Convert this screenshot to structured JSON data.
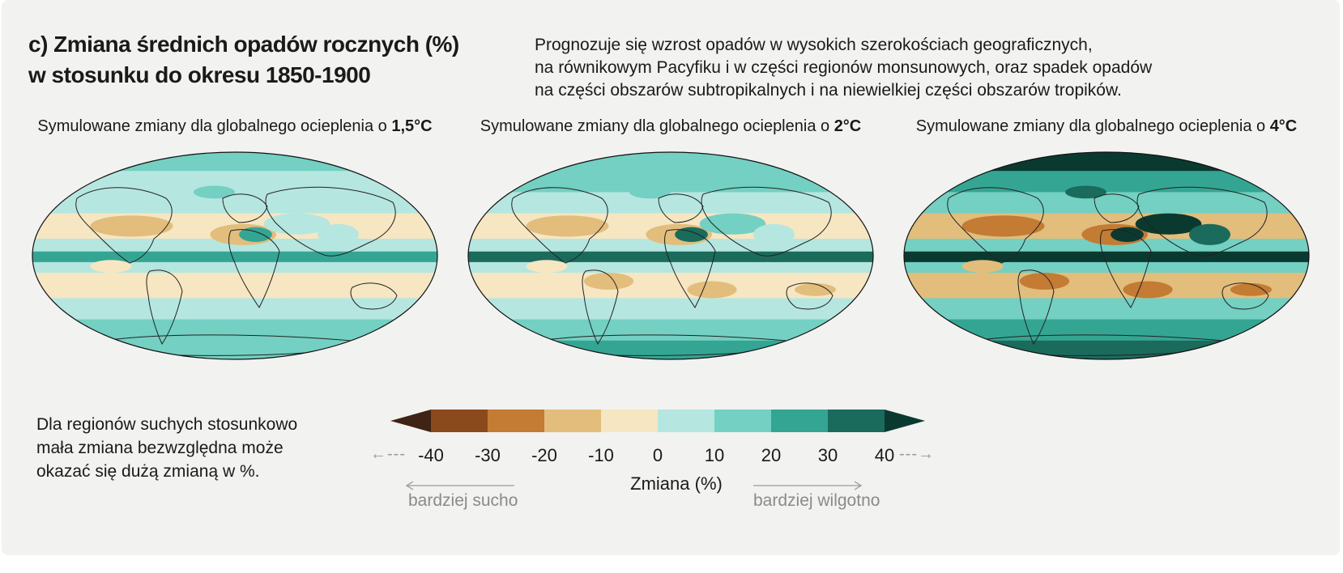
{
  "title": {
    "line1": "c) Zmiana średnich opadów rocznych (%)",
    "line2": "w stosunku do okresu 1850-1900"
  },
  "description": {
    "lines": [
      "Prognozuje się wzrost opadów w wysokich szerokościach geograficznych,",
      "na równikowym Pacyfiku i w części regionów monsunowych, oraz spadek opadów",
      "na części obszarów subtropikalnych i na niewielkiej części obszarów tropików."
    ]
  },
  "maps": [
    {
      "caption_prefix": "Symulowane zmiany dla globalnego ocieplenia o ",
      "warming_level": "1,5°C",
      "intensity": 1
    },
    {
      "caption_prefix": "Symulowane zmiany dla globalnego ocieplenia o ",
      "warming_level": "2°C",
      "intensity": 2
    },
    {
      "caption_prefix": "Symulowane zmiany dla globalnego ocieplenia o ",
      "warming_level": "4°C",
      "intensity": 3
    }
  ],
  "note": {
    "lines": [
      "Dla regionów suchych stosunkowo",
      "mała zmiana bezwzględna może",
      "okazać się dużą zmianą w %."
    ]
  },
  "legend": {
    "ticks": [
      "-40",
      "-30",
      "-20",
      "-10",
      "0",
      "10",
      "20",
      "30",
      "40"
    ],
    "axis_label": "Zmiana (%)",
    "drier_label": "bardziej sucho",
    "wetter_label": "bardziej wilgotno",
    "colors": [
      "#3f2314",
      "#8a4a1c",
      "#c47b33",
      "#e2bd7c",
      "#f6e6c2",
      "#b6e6e0",
      "#73d0c2",
      "#34a593",
      "#1a6b5c",
      "#0a3a2f"
    ]
  }
}
